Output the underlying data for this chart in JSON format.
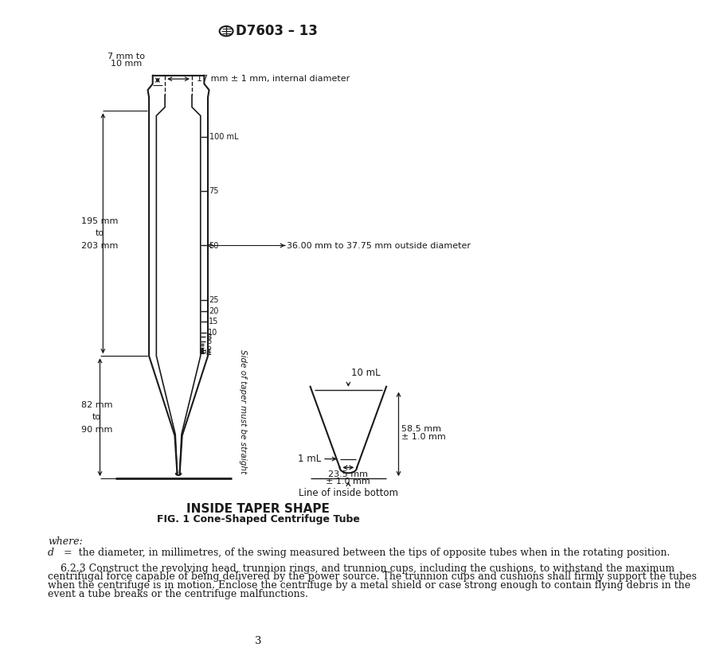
{
  "title_text": "D7603 – 13",
  "fig_title": "INSIDE TAPER SHAPE",
  "fig_subtitle": "FIG. 1 Cone-Shaped Centrifuge Tube",
  "page_number": "3",
  "where_text": "where:",
  "d_label": "d",
  "d_def": "  =  the diameter, in millimetres, of the swing measured between the tips of opposite tubes when in the rotating position.",
  "para_623": "6.2.3 Construct the revolving head, trunnion rings, and trunnion cups, including the cushions, to withstand the maximum centrifugal force capable of being delivered by the power source. The trunnion cups and cushions shall firmly support the tubes when the centrifuge is in motion. Enclose the centrifuge by a metal shield or case strong enough to contain flying debris in the event a tube breaks or the centrifuge malfunctions.",
  "label_17mm": "17 mm ± 1 mm, internal diameter",
  "label_36mm": "36.00 mm to 37.75 mm outside diameter",
  "label_side_taper": "Side of taper must be straight",
  "label_10mL": "10 mL",
  "label_1mL": "1 mL",
  "label_inside_bottom": "Line of inside bottom",
  "bg_color": "#ffffff",
  "lc": "#1a1a1a"
}
